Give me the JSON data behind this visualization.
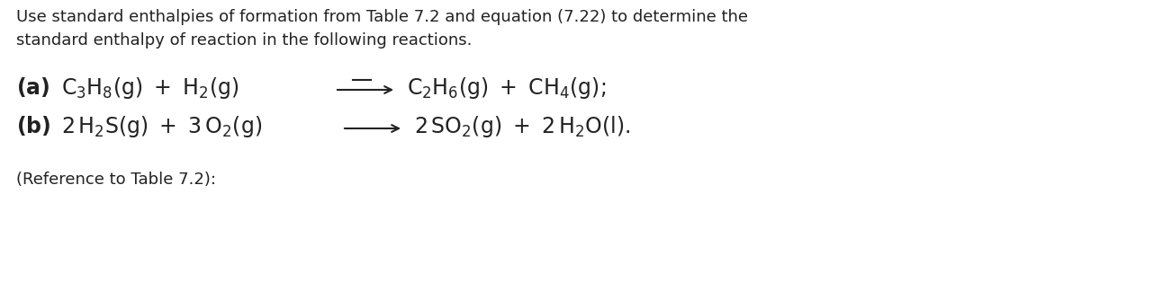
{
  "background_color": "#ffffff",
  "fig_width": 12.82,
  "fig_height": 3.14,
  "dpi": 100,
  "line1": "Use standard enthalpies of formation from Table 7.2 and equation (7.22) to determine the",
  "line2": "standard enthalpy of reaction in the following reactions.",
  "ref_line": "(Reference to Table 7.2):",
  "text_color": "#222222",
  "font_size_body": 13.0,
  "font_size_chem": 17.0,
  "font_size_ref": 13.0
}
